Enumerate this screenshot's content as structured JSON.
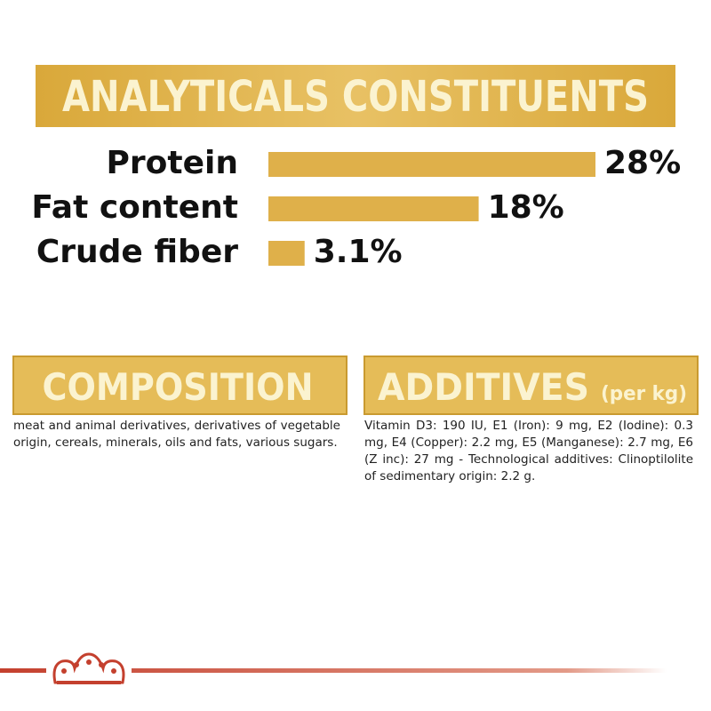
{
  "chart_data": {
    "type": "bar",
    "title": "ANALYTICALS CONSTITUENTS",
    "categories": [
      "Protein",
      "Fat content",
      "Crude fiber"
    ],
    "values": [
      28,
      18,
      3.1
    ],
    "value_labels": [
      "28%",
      "18%",
      "3.1%"
    ],
    "color": "#dfb04a"
  },
  "composition": {
    "title": "COMPOSITION",
    "text": "meat and animal derivatives, derivatives of vegetable origin, cereals, minerals, oils and fats, various sugars."
  },
  "additives": {
    "title": "ADDITIVES",
    "unit": "(per kg)",
    "text": "Vitamin D3: 190 IU, E1 (Iron): 9 mg, E2 (Iodine): 0.3 mg, E4 (Copper): 2.2 mg, E5 (Manganese): 2.7 mg, E6 (Z inc): 27 mg - Technological additives: Clinoptilolite of sedimentary origin: 2.2 g."
  }
}
